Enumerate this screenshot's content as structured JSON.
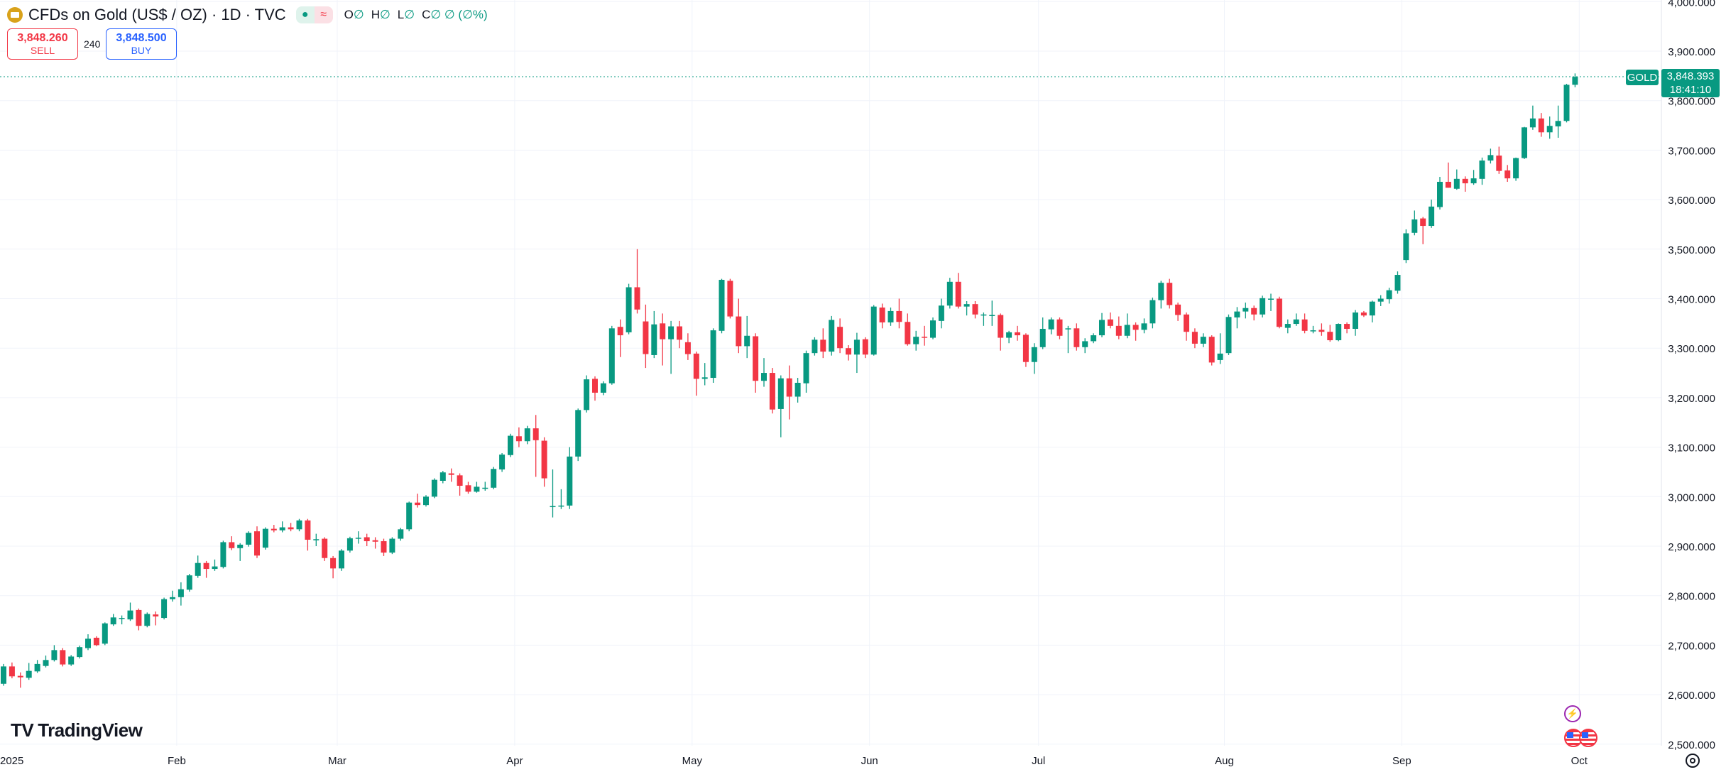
{
  "header": {
    "title": "CFDs on Gold (US$ / OZ) · 1D · TVC",
    "status_open": "●",
    "status_delay": "≈",
    "ohlc": [
      {
        "k": "O",
        "v": "∅"
      },
      {
        "k": "H",
        "v": "∅"
      },
      {
        "k": "L",
        "v": "∅"
      },
      {
        "k": "C",
        "v": "∅ ∅ (∅%)"
      }
    ]
  },
  "trade": {
    "sell_price": "3,848.260",
    "sell_label": "SELL",
    "spread": "240",
    "buy_price": "3,848.500",
    "buy_label": "BUY"
  },
  "last_price": {
    "symbol": "GOLD",
    "price": "3,848.393",
    "countdown": "18:41:10"
  },
  "branding": {
    "logo_text": "TradingView"
  },
  "colors": {
    "up": "#089981",
    "down": "#f23645",
    "grid": "#f0f3fa"
  },
  "chart_data": {
    "type": "candlestick",
    "title": "CFDs on Gold (US$ / OZ) · 1D · TVC",
    "ylim": [
      2500,
      4000
    ],
    "y_ticks": [
      "4,000.000",
      "3,900.000",
      "3,800.000",
      "3,700.000",
      "3,600.000",
      "3,500.000",
      "3,400.000",
      "3,300.000",
      "3,200.000",
      "3,100.000",
      "3,000.000",
      "2,900.000",
      "2,800.000",
      "2,700.000",
      "2,600.000",
      "2,500.000"
    ],
    "y_tick_values": [
      4000,
      3900,
      3800,
      3700,
      3600,
      3500,
      3400,
      3300,
      3200,
      3100,
      3000,
      2900,
      2800,
      2700,
      2600,
      2500
    ],
    "x_ticks": [
      {
        "label": "2025",
        "index": 0
      },
      {
        "label": "Feb",
        "index": 21
      },
      {
        "label": "Mar",
        "index": 40
      },
      {
        "label": "Apr",
        "index": 61
      },
      {
        "label": "May",
        "index": 82
      },
      {
        "label": "Jun",
        "index": 103
      },
      {
        "label": "Jul",
        "index": 123
      },
      {
        "label": "Aug",
        "index": 145
      },
      {
        "label": "Sep",
        "index": 166
      },
      {
        "label": "Oct",
        "index": 187
      }
    ],
    "ohlc": [
      [
        2622,
        2662,
        2618,
        2657
      ],
      [
        2657,
        2665,
        2633,
        2637
      ],
      [
        2638,
        2645,
        2614,
        2635
      ],
      [
        2634,
        2664,
        2630,
        2648
      ],
      [
        2647,
        2670,
        2644,
        2662
      ],
      [
        2658,
        2679,
        2655,
        2670
      ],
      [
        2670,
        2700,
        2667,
        2690
      ],
      [
        2690,
        2694,
        2657,
        2661
      ],
      [
        2661,
        2680,
        2658,
        2677
      ],
      [
        2676,
        2699,
        2673,
        2696
      ],
      [
        2694,
        2722,
        2690,
        2713
      ],
      [
        2715,
        2718,
        2698,
        2700
      ],
      [
        2703,
        2746,
        2700,
        2744
      ],
      [
        2742,
        2763,
        2739,
        2756
      ],
      [
        2755,
        2760,
        2742,
        2755
      ],
      [
        2752,
        2786,
        2749,
        2770
      ],
      [
        2771,
        2774,
        2730,
        2739
      ],
      [
        2739,
        2766,
        2736,
        2763
      ],
      [
        2762,
        2768,
        2740,
        2758
      ],
      [
        2755,
        2796,
        2752,
        2793
      ],
      [
        2793,
        2810,
        2788,
        2797
      ],
      [
        2797,
        2827,
        2780,
        2813
      ],
      [
        2812,
        2844,
        2808,
        2841
      ],
      [
        2840,
        2881,
        2836,
        2866
      ],
      [
        2866,
        2870,
        2836,
        2854
      ],
      [
        2854,
        2873,
        2850,
        2859
      ],
      [
        2858,
        2911,
        2855,
        2908
      ],
      [
        2908,
        2920,
        2892,
        2896
      ],
      [
        2896,
        2906,
        2870,
        2903
      ],
      [
        2903,
        2930,
        2899,
        2927
      ],
      [
        2930,
        2940,
        2876,
        2881
      ],
      [
        2897,
        2938,
        2893,
        2935
      ],
      [
        2935,
        2943,
        2928,
        2932
      ],
      [
        2932,
        2950,
        2928,
        2938
      ],
      [
        2938,
        2947,
        2930,
        2934
      ],
      [
        2934,
        2955,
        2930,
        2952
      ],
      [
        2952,
        2955,
        2891,
        2913
      ],
      [
        2914,
        2925,
        2900,
        2914
      ],
      [
        2915,
        2918,
        2870,
        2876
      ],
      [
        2876,
        2880,
        2835,
        2855
      ],
      [
        2855,
        2894,
        2850,
        2891
      ],
      [
        2891,
        2919,
        2887,
        2916
      ],
      [
        2916,
        2930,
        2905,
        2917
      ],
      [
        2918,
        2925,
        2900,
        2910
      ],
      [
        2912,
        2918,
        2895,
        2909
      ],
      [
        2910,
        2915,
        2880,
        2887
      ],
      [
        2887,
        2918,
        2884,
        2915
      ],
      [
        2915,
        2937,
        2911,
        2934
      ],
      [
        2934,
        2990,
        2930,
        2988
      ],
      [
        2988,
        3006,
        2978,
        2983
      ],
      [
        2983,
        3003,
        2980,
        3000
      ],
      [
        3000,
        3037,
        2997,
        3034
      ],
      [
        3032,
        3052,
        3027,
        3049
      ],
      [
        3047,
        3057,
        3030,
        3044
      ],
      [
        3043,
        3047,
        3002,
        3022
      ],
      [
        3023,
        3030,
        3006,
        3010
      ],
      [
        3010,
        3030,
        3008,
        3020
      ],
      [
        3018,
        3030,
        3012,
        3018
      ],
      [
        3018,
        3060,
        3015,
        3056
      ],
      [
        3055,
        3088,
        3050,
        3085
      ],
      [
        3084,
        3127,
        3080,
        3123
      ],
      [
        3122,
        3140,
        3100,
        3112
      ],
      [
        3112,
        3143,
        3106,
        3138
      ],
      [
        3138,
        3165,
        3040,
        3114
      ],
      [
        3113,
        3120,
        3020,
        3037
      ],
      [
        2981,
        3055,
        2958,
        2981
      ],
      [
        2982,
        3015,
        2975,
        2982
      ],
      [
        2982,
        3100,
        2975,
        3081
      ],
      [
        3081,
        3178,
        3072,
        3175
      ],
      [
        3175,
        3245,
        3170,
        3237
      ],
      [
        3238,
        3243,
        3194,
        3210
      ],
      [
        3210,
        3233,
        3205,
        3229
      ],
      [
        3229,
        3345,
        3226,
        3340
      ],
      [
        3343,
        3358,
        3282,
        3326
      ],
      [
        3332,
        3430,
        3328,
        3423
      ],
      [
        3423,
        3500,
        3370,
        3378
      ],
      [
        3354,
        3388,
        3260,
        3288
      ],
      [
        3286,
        3375,
        3280,
        3348
      ],
      [
        3350,
        3370,
        3265,
        3318
      ],
      [
        3318,
        3355,
        3248,
        3344
      ],
      [
        3344,
        3355,
        3300,
        3317
      ],
      [
        3312,
        3330,
        3276,
        3288
      ],
      [
        3289,
        3293,
        3204,
        3238
      ],
      [
        3238,
        3270,
        3225,
        3241
      ],
      [
        3240,
        3340,
        3230,
        3336
      ],
      [
        3335,
        3440,
        3330,
        3438
      ],
      [
        3436,
        3440,
        3360,
        3364
      ],
      [
        3364,
        3400,
        3290,
        3304
      ],
      [
        3304,
        3365,
        3280,
        3325
      ],
      [
        3324,
        3330,
        3210,
        3234
      ],
      [
        3234,
        3280,
        3222,
        3250
      ],
      [
        3250,
        3260,
        3168,
        3176
      ],
      [
        3177,
        3245,
        3120,
        3239
      ],
      [
        3239,
        3265,
        3156,
        3202
      ],
      [
        3202,
        3240,
        3190,
        3230
      ],
      [
        3229,
        3295,
        3210,
        3290
      ],
      [
        3290,
        3322,
        3285,
        3317
      ],
      [
        3317,
        3340,
        3280,
        3293
      ],
      [
        3293,
        3365,
        3285,
        3357
      ],
      [
        3343,
        3360,
        3290,
        3300
      ],
      [
        3300,
        3306,
        3275,
        3287
      ],
      [
        3287,
        3331,
        3250,
        3317
      ],
      [
        3318,
        3322,
        3280,
        3287
      ],
      [
        3287,
        3387,
        3285,
        3384
      ],
      [
        3382,
        3390,
        3340,
        3352
      ],
      [
        3352,
        3382,
        3345,
        3375
      ],
      [
        3375,
        3400,
        3340,
        3353
      ],
      [
        3353,
        3370,
        3305,
        3308
      ],
      [
        3308,
        3335,
        3295,
        3323
      ],
      [
        3323,
        3345,
        3305,
        3321
      ],
      [
        3321,
        3362,
        3318,
        3356
      ],
      [
        3355,
        3400,
        3340,
        3386
      ],
      [
        3386,
        3442,
        3380,
        3434
      ],
      [
        3434,
        3452,
        3380,
        3384
      ],
      [
        3384,
        3395,
        3366,
        3389
      ],
      [
        3389,
        3395,
        3360,
        3368
      ],
      [
        3368,
        3372,
        3345,
        3368
      ],
      [
        3367,
        3396,
        3345,
        3367
      ],
      [
        3367,
        3370,
        3295,
        3321
      ],
      [
        3321,
        3335,
        3310,
        3332
      ],
      [
        3332,
        3345,
        3315,
        3326
      ],
      [
        3327,
        3330,
        3262,
        3272
      ],
      [
        3272,
        3310,
        3248,
        3302
      ],
      [
        3302,
        3362,
        3298,
        3339
      ],
      [
        3338,
        3362,
        3328,
        3358
      ],
      [
        3358,
        3362,
        3318,
        3325
      ],
      [
        3340,
        3345,
        3290,
        3340
      ],
      [
        3340,
        3350,
        3295,
        3302
      ],
      [
        3302,
        3320,
        3290,
        3314
      ],
      [
        3314,
        3330,
        3310,
        3326
      ],
      [
        3326,
        3371,
        3322,
        3357
      ],
      [
        3358,
        3372,
        3340,
        3345
      ],
      [
        3345,
        3364,
        3318,
        3325
      ],
      [
        3325,
        3370,
        3320,
        3347
      ],
      [
        3347,
        3352,
        3315,
        3337
      ],
      [
        3337,
        3360,
        3330,
        3350
      ],
      [
        3350,
        3402,
        3340,
        3397
      ],
      [
        3397,
        3436,
        3380,
        3432
      ],
      [
        3432,
        3440,
        3380,
        3387
      ],
      [
        3388,
        3392,
        3355,
        3367
      ],
      [
        3368,
        3372,
        3315,
        3333
      ],
      [
        3333,
        3340,
        3300,
        3309
      ],
      [
        3309,
        3330,
        3302,
        3323
      ],
      [
        3323,
        3326,
        3265,
        3271
      ],
      [
        3276,
        3330,
        3268,
        3289
      ],
      [
        3290,
        3368,
        3286,
        3363
      ],
      [
        3362,
        3383,
        3340,
        3374
      ],
      [
        3374,
        3392,
        3360,
        3381
      ],
      [
        3381,
        3386,
        3356,
        3368
      ],
      [
        3368,
        3406,
        3362,
        3401
      ],
      [
        3400,
        3410,
        3375,
        3400
      ],
      [
        3400,
        3404,
        3340,
        3343
      ],
      [
        3341,
        3358,
        3330,
        3349
      ],
      [
        3349,
        3370,
        3345,
        3358
      ],
      [
        3358,
        3370,
        3330,
        3335
      ],
      [
        3336,
        3345,
        3330,
        3336
      ],
      [
        3337,
        3350,
        3325,
        3333
      ],
      [
        3333,
        3347,
        3313,
        3316
      ],
      [
        3316,
        3350,
        3314,
        3349
      ],
      [
        3349,
        3352,
        3330,
        3339
      ],
      [
        3339,
        3377,
        3325,
        3372
      ],
      [
        3372,
        3375,
        3363,
        3366
      ],
      [
        3366,
        3396,
        3352,
        3394
      ],
      [
        3394,
        3407,
        3385,
        3400
      ],
      [
        3399,
        3422,
        3390,
        3417
      ],
      [
        3416,
        3455,
        3410,
        3448
      ],
      [
        3478,
        3540,
        3472,
        3532
      ],
      [
        3533,
        3578,
        3528,
        3560
      ],
      [
        3562,
        3565,
        3510,
        3547
      ],
      [
        3547,
        3600,
        3543,
        3586
      ],
      [
        3585,
        3646,
        3580,
        3636
      ],
      [
        3636,
        3675,
        3624,
        3624
      ],
      [
        3622,
        3661,
        3620,
        3642
      ],
      [
        3642,
        3647,
        3616,
        3633
      ],
      [
        3633,
        3660,
        3630,
        3643
      ],
      [
        3642,
        3685,
        3630,
        3679
      ],
      [
        3679,
        3703,
        3673,
        3690
      ],
      [
        3689,
        3707,
        3652,
        3658
      ],
      [
        3659,
        3670,
        3636,
        3643
      ],
      [
        3643,
        3685,
        3638,
        3684
      ],
      [
        3684,
        3747,
        3682,
        3746
      ],
      [
        3746,
        3790,
        3741,
        3764
      ],
      [
        3764,
        3775,
        3727,
        3736
      ],
      [
        3736,
        3768,
        3723,
        3749
      ],
      [
        3748,
        3790,
        3725,
        3759
      ],
      [
        3759,
        3834,
        3756,
        3832
      ],
      [
        3832,
        3855,
        3827,
        3848
      ]
    ]
  }
}
